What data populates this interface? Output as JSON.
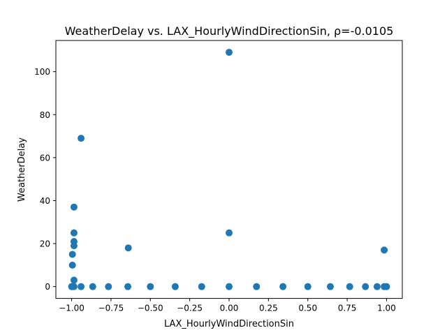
{
  "chart_data": {
    "type": "scatter",
    "title": "WeatherDelay vs. LAX_HourlyWindDirectionSin, ρ=-0.0105",
    "xlabel": "LAX_HourlyWindDirectionSin",
    "ylabel": "WeatherDelay",
    "xlim": [
      -1.1,
      1.1
    ],
    "ylim": [
      -5.5,
      114.5
    ],
    "xticks": [
      -1.0,
      -0.75,
      -0.5,
      -0.25,
      0.0,
      0.25,
      0.5,
      0.75,
      1.0
    ],
    "xtick_labels": [
      "−1.00",
      "−0.75",
      "−0.50",
      "−0.25",
      "0.00",
      "0.25",
      "0.50",
      "0.75",
      "1.00"
    ],
    "yticks": [
      0,
      20,
      40,
      60,
      80,
      100
    ],
    "ytick_labels": [
      "0",
      "20",
      "40",
      "60",
      "80",
      "100"
    ],
    "grid": false,
    "marker_color": "#1f77b4",
    "points": [
      {
        "x": 0.0,
        "y": 109
      },
      {
        "x": -0.94,
        "y": 69
      },
      {
        "x": -0.985,
        "y": 37
      },
      {
        "x": -0.985,
        "y": 25
      },
      {
        "x": 0.0,
        "y": 25
      },
      {
        "x": -0.985,
        "y": 21
      },
      {
        "x": -0.985,
        "y": 19
      },
      {
        "x": -0.64,
        "y": 18
      },
      {
        "x": 0.985,
        "y": 17
      },
      {
        "x": -0.995,
        "y": 15
      },
      {
        "x": -0.995,
        "y": 10
      },
      {
        "x": -0.985,
        "y": 3
      },
      {
        "x": -1.0,
        "y": 0
      },
      {
        "x": -0.995,
        "y": 0
      },
      {
        "x": -0.985,
        "y": 0
      },
      {
        "x": -0.94,
        "y": 0
      },
      {
        "x": -0.866,
        "y": 0
      },
      {
        "x": -0.766,
        "y": 0
      },
      {
        "x": -0.643,
        "y": 0
      },
      {
        "x": -0.5,
        "y": 0
      },
      {
        "x": -0.342,
        "y": 0
      },
      {
        "x": -0.174,
        "y": 0
      },
      {
        "x": 0.0,
        "y": 0
      },
      {
        "x": 0.174,
        "y": 0
      },
      {
        "x": 0.342,
        "y": 0
      },
      {
        "x": 0.5,
        "y": 0
      },
      {
        "x": 0.643,
        "y": 0
      },
      {
        "x": 0.766,
        "y": 0
      },
      {
        "x": 0.866,
        "y": 0
      },
      {
        "x": 0.94,
        "y": 0
      },
      {
        "x": 0.985,
        "y": 0
      },
      {
        "x": 1.0,
        "y": 0
      }
    ]
  }
}
